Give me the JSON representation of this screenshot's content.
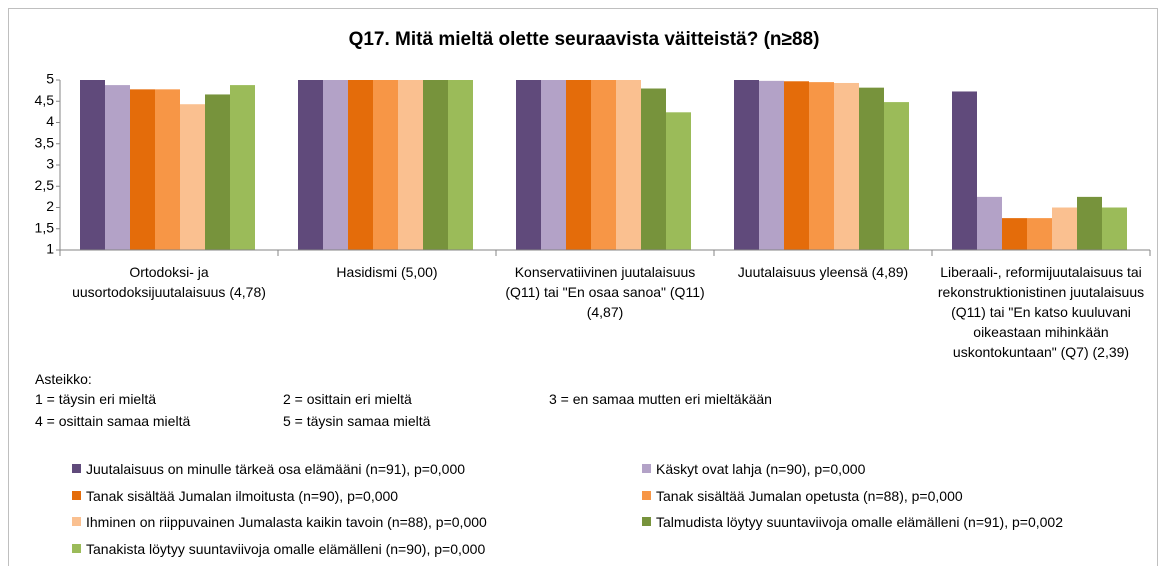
{
  "chart_data": {
    "type": "bar",
    "title": "Q17. Mitä mieltä olette seuraavista väitteistä? (n≥88)",
    "categories": [
      "Ortodoksi- ja uusortodoksijuutalaisuus (4,78)",
      "Hasidismi (5,00)",
      "Konservatiivinen juutalaisuus (Q11) tai \"En osaa sanoa\" (Q11) (4,87)",
      "Juutalaisuus yleensä (4,89)",
      "Liberaali-, reformijuutalaisuus tai rekonstruktionistinen juutalaisuus (Q11) tai \"En katso kuuluvani oikeastaan mihinkään uskontokuntaan\" (Q7) (2,39)"
    ],
    "series": [
      {
        "name": "Juutalaisuus on minulle tärkeä osa elämääni (n=91), p=0,000",
        "color": "#604a7b",
        "values": [
          5,
          5,
          5,
          5,
          4.73
        ]
      },
      {
        "name": "Käskyt ovat lahja (n=90), p=0,000",
        "color": "#b3a2c7",
        "values": [
          4.88,
          5,
          5,
          4.98,
          2.25
        ]
      },
      {
        "name": "Tanak sisältää Jumalan ilmoitusta (n=90), p=0,000",
        "color": "#e46c0a",
        "values": [
          4.78,
          5,
          5,
          4.97,
          1.75
        ]
      },
      {
        "name": "Tanak sisältää Jumalan opetusta (n=88), p=0,000",
        "color": "#f79646",
        "values": [
          4.78,
          5,
          5,
          4.95,
          1.75
        ]
      },
      {
        "name": "Ihminen on riippuvainen Jumalasta kaikin tavoin (n=88), p=0,000",
        "color": "#fac090",
        "values": [
          4.43,
          5,
          5,
          4.93,
          2.0
        ]
      },
      {
        "name": "Talmudista löytyy suuntaviivoja omalle elämälleni (n=91), p=0,002",
        "color": "#77933c",
        "values": [
          4.66,
          5,
          4.8,
          4.82,
          2.25
        ]
      },
      {
        "name": "Tanakista löytyy suuntaviivoja omalle elämälleni (n=90), p=0,000",
        "color": "#9bbb59",
        "values": [
          4.88,
          5,
          4.24,
          4.48,
          2.0
        ]
      }
    ],
    "ylim": [
      1,
      5
    ],
    "yticks": [
      1,
      {
        "value": 1.5,
        "label": "1,5"
      },
      2,
      {
        "value": 2.5,
        "label": "2,5"
      },
      3,
      {
        "value": 3.5,
        "label": "3,5"
      },
      4,
      {
        "value": 4.5,
        "label": "4,5"
      },
      5
    ],
    "grid": false,
    "scale_title": "Asteikko:",
    "scale_notes": [
      "1 = täysin eri mieltä",
      "2 = osittain eri mieltä",
      "3 = en samaa mutten eri mieltäkään",
      "4 = osittain samaa mieltä",
      "5 = täysin samaa mieltä"
    ]
  }
}
